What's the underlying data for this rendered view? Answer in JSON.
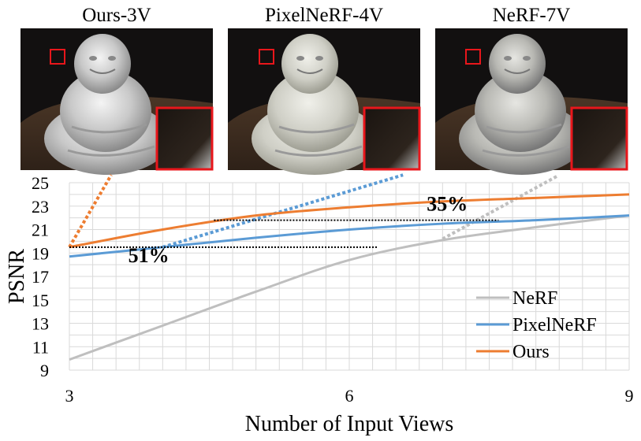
{
  "panels": [
    {
      "title": "Ours-3V",
      "variant": "ours"
    },
    {
      "title": "PixelNeRF-4V",
      "variant": "pixelnerf"
    },
    {
      "title": "NeRF-7V",
      "variant": "nerf"
    }
  ],
  "colors": {
    "nerf": "#bfbfbf",
    "pixelnerf": "#5b9bd5",
    "ours": "#ed7d31",
    "zoom_box": "#e8161b",
    "grid": "#d9d9d9",
    "background_scene": "#3a2a1e"
  },
  "chart_data": {
    "type": "line",
    "xlabel": "Number of Input Views",
    "ylabel": "PSNR",
    "xlim": [
      3,
      9
    ],
    "ylim": [
      9,
      25
    ],
    "xticks": [
      3,
      6,
      9
    ],
    "yticks": [
      9,
      11,
      13,
      15,
      17,
      19,
      21,
      23,
      25
    ],
    "grid": true,
    "legend": "bottom-right",
    "series": [
      {
        "name": "NeRF",
        "color_key": "nerf",
        "x": [
          3,
          4,
          5,
          6,
          7,
          8,
          9
        ],
        "y": [
          9.9,
          12.8,
          15.7,
          18.4,
          20.1,
          21.2,
          22.2
        ]
      },
      {
        "name": "PixelNeRF",
        "color_key": "pixelnerf",
        "x": [
          3,
          4,
          5,
          6,
          7,
          8,
          9
        ],
        "y": [
          18.7,
          19.5,
          20.3,
          21.0,
          21.5,
          21.8,
          22.2
        ]
      },
      {
        "name": "Ours",
        "color_key": "ours",
        "x": [
          3,
          4,
          5,
          6,
          7,
          8,
          9
        ],
        "y": [
          19.5,
          21.0,
          22.2,
          22.9,
          23.4,
          23.7,
          24.0
        ]
      }
    ],
    "annotations": [
      {
        "text": "51%",
        "from": [
          3,
          19.5
        ],
        "to": [
          6.3,
          19.5
        ],
        "label_at": [
          3.85,
          18.2
        ]
      },
      {
        "text": "35%",
        "from": [
          4.55,
          21.8
        ],
        "to": [
          7.6,
          21.8
        ],
        "label_at": [
          7.05,
          22.6
        ]
      }
    ],
    "projection_lines": [
      {
        "color_key": "ours",
        "from": [
          3,
          19.5
        ],
        "to": [
          3.4,
          25
        ]
      },
      {
        "color_key": "pixelnerf",
        "from": [
          4.0,
          19.5
        ],
        "to": [
          6.3,
          25
        ]
      },
      {
        "color_key": "nerf",
        "from": [
          7.0,
          20.2
        ],
        "to": [
          8.1,
          25
        ]
      }
    ]
  }
}
